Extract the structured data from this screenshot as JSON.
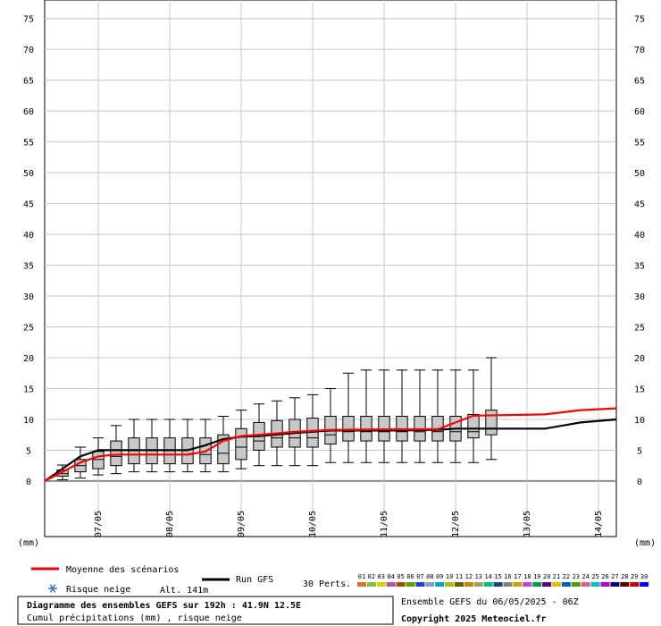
{
  "chart_data": {
    "type": "boxplot",
    "ylim": [
      -9,
      78
    ],
    "yticks": [
      0,
      5,
      10,
      15,
      20,
      25,
      30,
      35,
      40,
      45,
      50,
      55,
      60,
      65,
      70,
      75
    ],
    "unit_left": "(mm)",
    "unit_right": "(mm)",
    "date_labels": [
      "07/05",
      "08/05",
      "09/05",
      "10/05",
      "11/05",
      "12/05",
      "13/05",
      "14/05"
    ],
    "step_hours": 6,
    "max_hour": 192,
    "boxes": [
      {
        "h": 6,
        "min": 0.2,
        "q1": 0.8,
        "med": 1.2,
        "q3": 1.8,
        "max": 2.6
      },
      {
        "h": 12,
        "min": 0.5,
        "q1": 1.5,
        "med": 2.5,
        "q3": 3.5,
        "max": 5.5
      },
      {
        "h": 18,
        "min": 1.0,
        "q1": 2.0,
        "med": 3.5,
        "q3": 4.8,
        "max": 7.0
      },
      {
        "h": 24,
        "min": 1.2,
        "q1": 2.5,
        "med": 4.0,
        "q3": 6.5,
        "max": 9.0
      },
      {
        "h": 30,
        "min": 1.5,
        "q1": 2.8,
        "med": 4.3,
        "q3": 7.0,
        "max": 10.0
      },
      {
        "h": 36,
        "min": 1.5,
        "q1": 2.8,
        "med": 4.3,
        "q3": 7.0,
        "max": 10.0
      },
      {
        "h": 42,
        "min": 1.5,
        "q1": 2.8,
        "med": 4.3,
        "q3": 7.0,
        "max": 10.0
      },
      {
        "h": 48,
        "min": 1.5,
        "q1": 2.8,
        "med": 4.3,
        "q3": 7.0,
        "max": 10.0
      },
      {
        "h": 54,
        "min": 1.5,
        "q1": 2.8,
        "med": 4.3,
        "q3": 7.0,
        "max": 10.0
      },
      {
        "h": 60,
        "min": 1.5,
        "q1": 2.8,
        "med": 4.5,
        "q3": 7.5,
        "max": 10.5
      },
      {
        "h": 66,
        "min": 2.0,
        "q1": 3.5,
        "med": 5.5,
        "q3": 8.5,
        "max": 11.5
      },
      {
        "h": 72,
        "min": 2.5,
        "q1": 5.0,
        "med": 6.5,
        "q3": 9.5,
        "max": 12.5
      },
      {
        "h": 78,
        "min": 2.5,
        "q1": 5.5,
        "med": 7.0,
        "q3": 9.8,
        "max": 13.0
      },
      {
        "h": 84,
        "min": 2.5,
        "q1": 5.5,
        "med": 7.0,
        "q3": 10.0,
        "max": 13.5
      },
      {
        "h": 90,
        "min": 2.5,
        "q1": 5.5,
        "med": 7.0,
        "q3": 10.2,
        "max": 14.0
      },
      {
        "h": 96,
        "min": 3.0,
        "q1": 6.0,
        "med": 7.5,
        "q3": 10.5,
        "max": 15.0
      },
      {
        "h": 102,
        "min": 3.0,
        "q1": 6.5,
        "med": 8.0,
        "q3": 10.5,
        "max": 17.5
      },
      {
        "h": 108,
        "min": 3.0,
        "q1": 6.5,
        "med": 8.0,
        "q3": 10.5,
        "max": 18.0
      },
      {
        "h": 114,
        "min": 3.0,
        "q1": 6.5,
        "med": 8.0,
        "q3": 10.5,
        "max": 18.0
      },
      {
        "h": 120,
        "min": 3.0,
        "q1": 6.5,
        "med": 8.0,
        "q3": 10.5,
        "max": 18.0
      },
      {
        "h": 126,
        "min": 3.0,
        "q1": 6.5,
        "med": 8.0,
        "q3": 10.5,
        "max": 18.0
      },
      {
        "h": 132,
        "min": 3.0,
        "q1": 6.5,
        "med": 8.0,
        "q3": 10.5,
        "max": 18.0
      },
      {
        "h": 138,
        "min": 3.0,
        "q1": 6.5,
        "med": 8.0,
        "q3": 10.5,
        "max": 18.0
      },
      {
        "h": 144,
        "min": 3.0,
        "q1": 7.0,
        "med": 8.0,
        "q3": 10.8,
        "max": 18.0
      },
      {
        "h": 150,
        "min": 3.5,
        "q1": 7.5,
        "med": 8.5,
        "q3": 11.5,
        "max": 20.0
      }
    ],
    "mean_series": [
      [
        0,
        0
      ],
      [
        6,
        1.5
      ],
      [
        12,
        3
      ],
      [
        18,
        4
      ],
      [
        24,
        4.3
      ],
      [
        48,
        4.3
      ],
      [
        54,
        4.8
      ],
      [
        60,
        6.5
      ],
      [
        66,
        7.3
      ],
      [
        72,
        7.5
      ],
      [
        84,
        8.0
      ],
      [
        96,
        8.3
      ],
      [
        120,
        8.4
      ],
      [
        132,
        8.4
      ],
      [
        138,
        9.5
      ],
      [
        144,
        10.6
      ],
      [
        168,
        10.8
      ],
      [
        180,
        11.5
      ],
      [
        192,
        11.8
      ]
    ],
    "gfs_series": [
      [
        0,
        0
      ],
      [
        6,
        2
      ],
      [
        12,
        4
      ],
      [
        18,
        5
      ],
      [
        24,
        5
      ],
      [
        48,
        5
      ],
      [
        54,
        5.8
      ],
      [
        60,
        6.8
      ],
      [
        66,
        7.2
      ],
      [
        72,
        7.3
      ],
      [
        84,
        7.8
      ],
      [
        96,
        8.2
      ],
      [
        120,
        8.2
      ],
      [
        132,
        8.3
      ],
      [
        138,
        8.5
      ],
      [
        168,
        8.5
      ],
      [
        180,
        9.5
      ],
      [
        192,
        10.0
      ]
    ],
    "legend": {
      "mean_label": "Moyenne des scénarios",
      "gfs_label": "Run GFS",
      "snow_label": "Risque neige",
      "alt_label": "Alt. 141m",
      "perts_label": "30 Perts.",
      "mean_color": "#ff0000",
      "gfs_color": "#000000",
      "snow_icon": "snowflake-icon"
    },
    "perturbations": [
      {
        "id": "01",
        "color": "#e07030"
      },
      {
        "id": "02",
        "color": "#80c040"
      },
      {
        "id": "03",
        "color": "#e0d000"
      },
      {
        "id": "04",
        "color": "#b050b0"
      },
      {
        "id": "05",
        "color": "#a05000"
      },
      {
        "id": "06",
        "color": "#60a000"
      },
      {
        "id": "07",
        "color": "#2040e0"
      },
      {
        "id": "08",
        "color": "#80a0c0"
      },
      {
        "id": "09",
        "color": "#00a0e0"
      },
      {
        "id": "10",
        "color": "#a0c000"
      },
      {
        "id": "11",
        "color": "#606000"
      },
      {
        "id": "12",
        "color": "#d08000"
      },
      {
        "id": "13",
        "color": "#a0a060"
      },
      {
        "id": "14",
        "color": "#00c080"
      },
      {
        "id": "15",
        "color": "#204080"
      },
      {
        "id": "16",
        "color": "#808080"
      },
      {
        "id": "17",
        "color": "#d0a000"
      },
      {
        "id": "18",
        "color": "#c040e0"
      },
      {
        "id": "19",
        "color": "#00a040"
      },
      {
        "id": "20",
        "color": "#600080"
      },
      {
        "id": "21",
        "color": "#e0c000"
      },
      {
        "id": "22",
        "color": "#0060c0"
      },
      {
        "id": "23",
        "color": "#40a000"
      },
      {
        "id": "24",
        "color": "#e06080"
      },
      {
        "id": "25",
        "color": "#00c0c0"
      },
      {
        "id": "26",
        "color": "#c000c0"
      },
      {
        "id": "27",
        "color": "#000080"
      },
      {
        "id": "28",
        "color": "#600000"
      },
      {
        "id": "29",
        "color": "#c00000"
      },
      {
        "id": "30",
        "color": "#0000ff"
      }
    ],
    "title": "Diagramme des ensembles GEFS sur 192h : 41.9N 12.5E",
    "subtitle": "Cumul précipitations (mm) , risque neige",
    "run_info": "Ensemble GEFS du 06/05/2025 - 06Z",
    "copyright": "Copyright 2025 Meteociel.fr"
  }
}
